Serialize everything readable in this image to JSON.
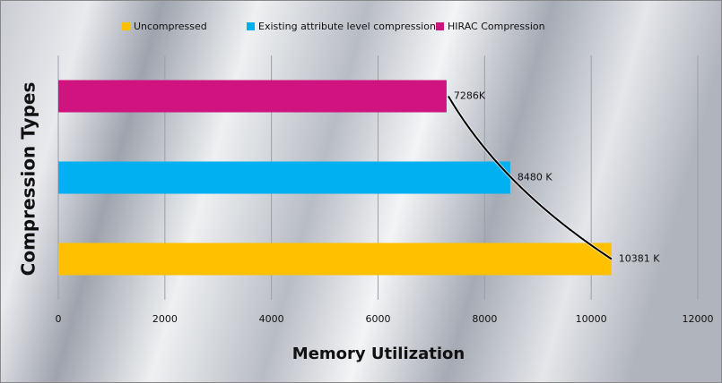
{
  "chart_data": {
    "type": "hbar",
    "xlabel": "Memory  Utilization",
    "ylabel": "Compression Types",
    "xlim": [
      0,
      12000
    ],
    "xticks": [
      0,
      2000,
      4000,
      6000,
      8000,
      10000,
      12000
    ],
    "grid": true,
    "legend": "top",
    "series": [
      {
        "name": "Uncompressed",
        "color": "#ffc000",
        "values": [
          10381
        ],
        "value_labels": [
          "10381 K"
        ]
      },
      {
        "name": "Existing attribute  level compression",
        "color": "#00b0f0",
        "values": [
          8480
        ],
        "value_labels": [
          "8480 K"
        ]
      },
      {
        "name": "HIRAC Compression",
        "color": "#d0147f",
        "values": [
          7286
        ],
        "value_labels": [
          "7286K"
        ]
      }
    ]
  }
}
